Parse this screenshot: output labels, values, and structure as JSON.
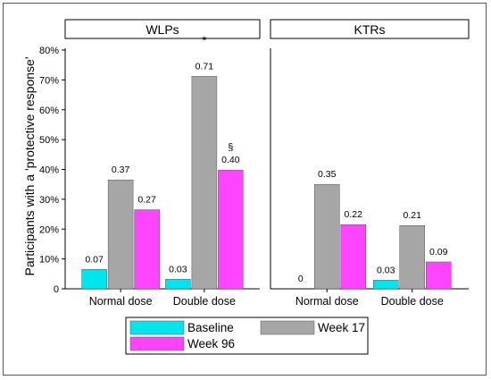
{
  "chart_data": {
    "type": "bar",
    "ylabel": "Participants with a 'protective response'",
    "yticks": [
      "0",
      "10%",
      "20%",
      "30%",
      "40%",
      "50%",
      "60%",
      "70%",
      "80%"
    ],
    "ylim": [
      0,
      0.8
    ],
    "grid": false,
    "legend_position": "bottom-center",
    "series": [
      {
        "name": "Baseline",
        "color": "#00e5ee"
      },
      {
        "name": "Week 17",
        "color": "#a6a6a6"
      },
      {
        "name": "Week 96",
        "color": "#ff44ff"
      }
    ],
    "panels": [
      {
        "title": "WLPs",
        "groups": [
          {
            "category": "Normal dose",
            "values": [
              0.065,
              0.365,
              0.265
            ],
            "labels": [
              "0.07",
              "0.37",
              "0.27"
            ],
            "annotations": [
              "",
              "",
              ""
            ]
          },
          {
            "category": "Double dose",
            "values": [
              0.032,
              0.712,
              0.398
            ],
            "labels": [
              "0.03",
              "0.71",
              "0.40"
            ],
            "annotations": [
              "",
              "*",
              "§"
            ]
          }
        ]
      },
      {
        "title": "KTRs",
        "groups": [
          {
            "category": "Normal dose",
            "values": [
              0.0,
              0.35,
              0.215
            ],
            "labels": [
              "0",
              "0.35",
              "0.22"
            ],
            "annotations": [
              "",
              "",
              ""
            ]
          },
          {
            "category": "Double dose",
            "values": [
              0.029,
              0.212,
              0.09
            ],
            "labels": [
              "0.03",
              "0.21",
              "0.09"
            ],
            "annotations": [
              "",
              "",
              ""
            ]
          }
        ]
      }
    ]
  }
}
